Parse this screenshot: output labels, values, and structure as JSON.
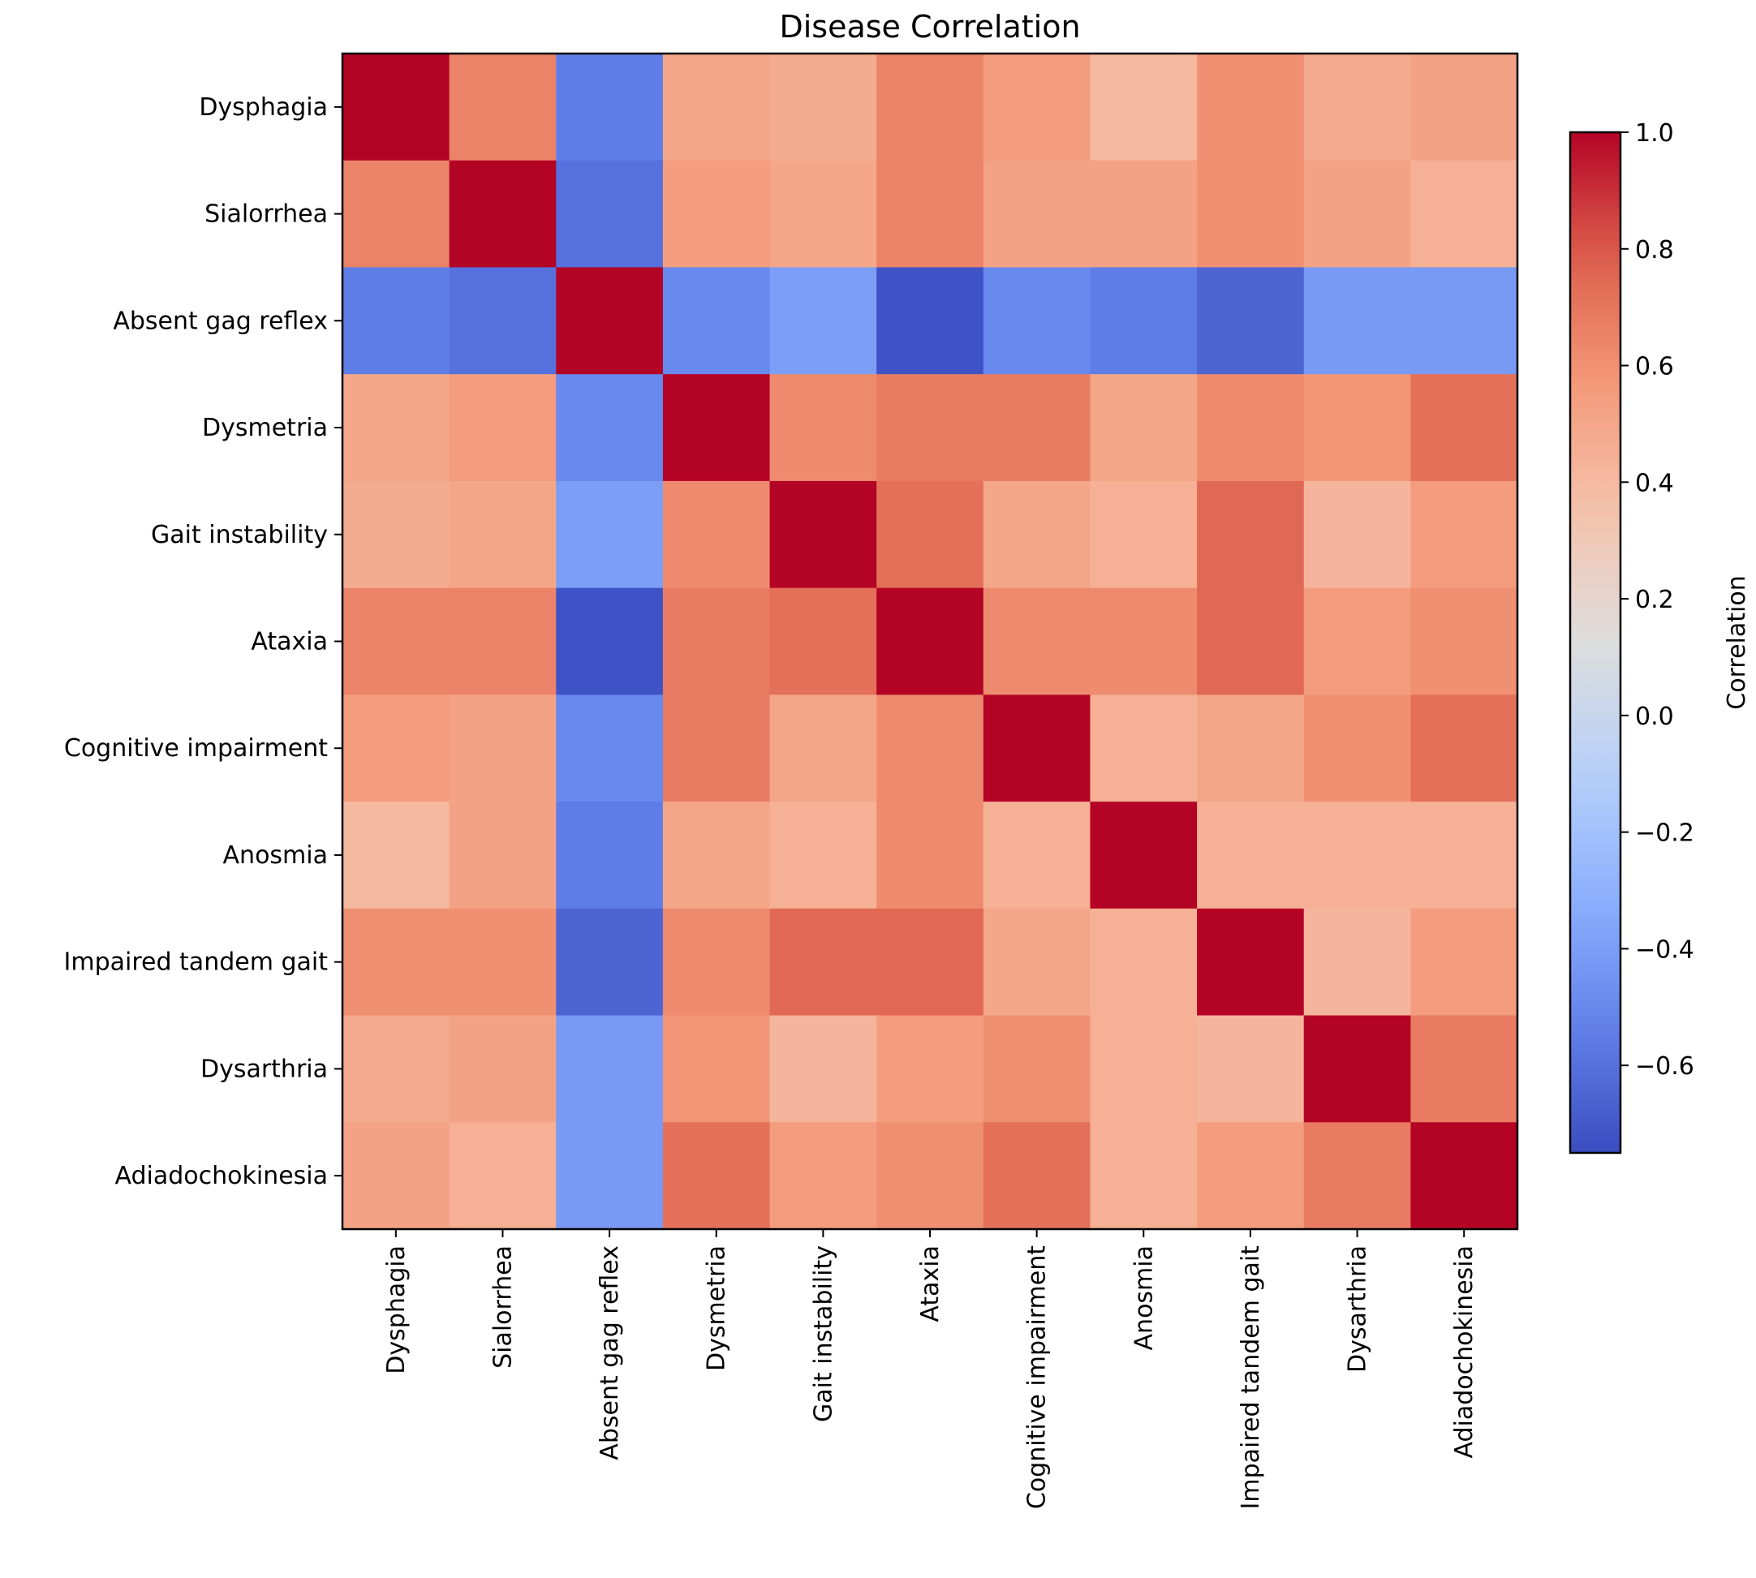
{
  "chart_data": {
    "type": "heatmap",
    "title": "Disease Correlation",
    "colormap": "coolwarm",
    "colorbar_label": "Correlation",
    "vmin": -0.75,
    "vmax": 1.0,
    "colorbar_ticks": [
      "1.0",
      "0.8",
      "0.6",
      "0.4",
      "0.2",
      "0.0",
      "−0.2",
      "−0.4",
      "−0.6"
    ],
    "colorbar_tick_values": [
      1.0,
      0.8,
      0.6,
      0.4,
      0.2,
      0.0,
      -0.2,
      -0.4,
      -0.6
    ],
    "labels": [
      "Dysphagia",
      "Sialorrhea",
      "Absent gag reflex",
      "Dysmetria",
      "Gait instability",
      "Ataxia",
      "Cognitive impairment",
      "Anosmia",
      "Impaired tandem gait",
      "Dysarthria",
      "Adiadochokinesia"
    ],
    "matrix": [
      [
        1.0,
        0.65,
        -0.55,
        0.5,
        0.47,
        0.65,
        0.55,
        0.4,
        0.6,
        0.48,
        0.52
      ],
      [
        0.65,
        1.0,
        -0.6,
        0.55,
        0.5,
        0.65,
        0.52,
        0.52,
        0.6,
        0.52,
        0.45
      ],
      [
        -0.55,
        -0.6,
        1.0,
        -0.5,
        -0.4,
        -0.72,
        -0.5,
        -0.55,
        -0.65,
        -0.42,
        -0.42
      ],
      [
        0.5,
        0.55,
        -0.5,
        1.0,
        0.62,
        0.68,
        0.68,
        0.5,
        0.62,
        0.58,
        0.72
      ],
      [
        0.47,
        0.5,
        -0.4,
        0.62,
        1.0,
        0.72,
        0.5,
        0.45,
        0.75,
        0.42,
        0.55
      ],
      [
        0.65,
        0.65,
        -0.72,
        0.68,
        0.72,
        1.0,
        0.62,
        0.62,
        0.75,
        0.55,
        0.6
      ],
      [
        0.55,
        0.52,
        -0.5,
        0.68,
        0.5,
        0.62,
        1.0,
        0.45,
        0.5,
        0.6,
        0.72
      ],
      [
        0.4,
        0.52,
        -0.55,
        0.5,
        0.45,
        0.62,
        0.45,
        1.0,
        0.45,
        0.45,
        0.45
      ],
      [
        0.6,
        0.6,
        -0.65,
        0.62,
        0.75,
        0.75,
        0.5,
        0.45,
        1.0,
        0.42,
        0.55
      ],
      [
        0.48,
        0.52,
        -0.42,
        0.58,
        0.42,
        0.55,
        0.6,
        0.45,
        0.42,
        1.0,
        0.68
      ],
      [
        0.52,
        0.45,
        -0.42,
        0.72,
        0.55,
        0.6,
        0.72,
        0.45,
        0.55,
        0.68,
        1.0
      ]
    ]
  }
}
